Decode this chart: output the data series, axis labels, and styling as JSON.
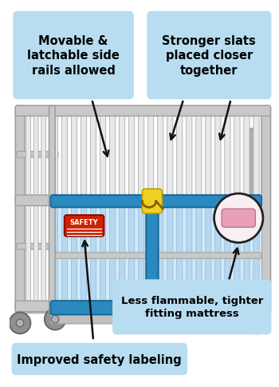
{
  "bg_color": "#ffffff",
  "label_bg_color": "#b8ddf0",
  "label_text_color": "#000000",
  "crib_gray": "#c8c8c8",
  "crib_gray_dark": "#a0a0a0",
  "crib_gray_light": "#e8e8e8",
  "blue_rail": "#2a8abf",
  "blue_rail_dark": "#1a6a9a",
  "blue_light": "#a8d4f0",
  "latch_yellow": "#f0d020",
  "latch_dark": "#c0a000",
  "safety_red": "#cc2200",
  "mattress_pink": "#e8a0b8",
  "mattress_light": "#f5d8e5",
  "wheel_gray": "#909090",
  "wheel_dark": "#606060",
  "arrow_color": "#111111",
  "label1_text": "Movable &\nlatchable side\nrails allowed",
  "label2_text": "Stronger slats\nplaced closer\ntogether",
  "label3_text": "Less flammable, tighter\nfitting mattress",
  "label4_text": "Improved safety labeling"
}
